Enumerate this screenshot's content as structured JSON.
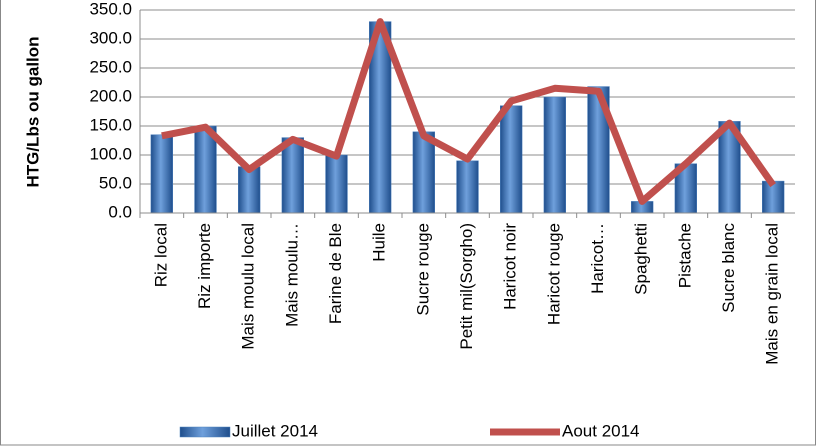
{
  "chart_data": {
    "type": "bar_line",
    "y_label": "HTG/Lbs ou gallon",
    "categories": [
      "Riz local",
      "Riz importe",
      "Mais moulu local",
      "Mais moulu…",
      "Farine de Ble",
      "Huile",
      "Sucre rouge",
      "Petit mil(Sorgho)",
      "Haricot noir",
      "Haricot rouge",
      "Haricot…",
      "Spaghetti",
      "Pistache",
      "Sucre blanc",
      "Mais en grain local"
    ],
    "series": [
      {
        "name": "Juillet 2014",
        "type": "bar",
        "color": "#4f81bd",
        "values": [
          135,
          150,
          80,
          130,
          100,
          330,
          140,
          90,
          185,
          200,
          218,
          20,
          85,
          158,
          55
        ]
      },
      {
        "name": "Aout 2014",
        "type": "line",
        "color": "#c0504d",
        "values": [
          133,
          148,
          75,
          127,
          98,
          330,
          133,
          93,
          193,
          215,
          210,
          20,
          85,
          155,
          48
        ]
      }
    ],
    "ylim": [
      0,
      350
    ],
    "yticks": [
      {
        "value": 0,
        "label": "0.0"
      },
      {
        "value": 50,
        "label": "50.0"
      },
      {
        "value": 100,
        "label": "100.0"
      },
      {
        "value": 150,
        "label": "150.0"
      },
      {
        "value": 200,
        "label": "200.0"
      },
      {
        "value": 250,
        "label": "250.0"
      },
      {
        "value": 300,
        "label": "300.0"
      },
      {
        "value": 350,
        "label": "350.0"
      }
    ],
    "grid": true,
    "legend": "bottom"
  }
}
